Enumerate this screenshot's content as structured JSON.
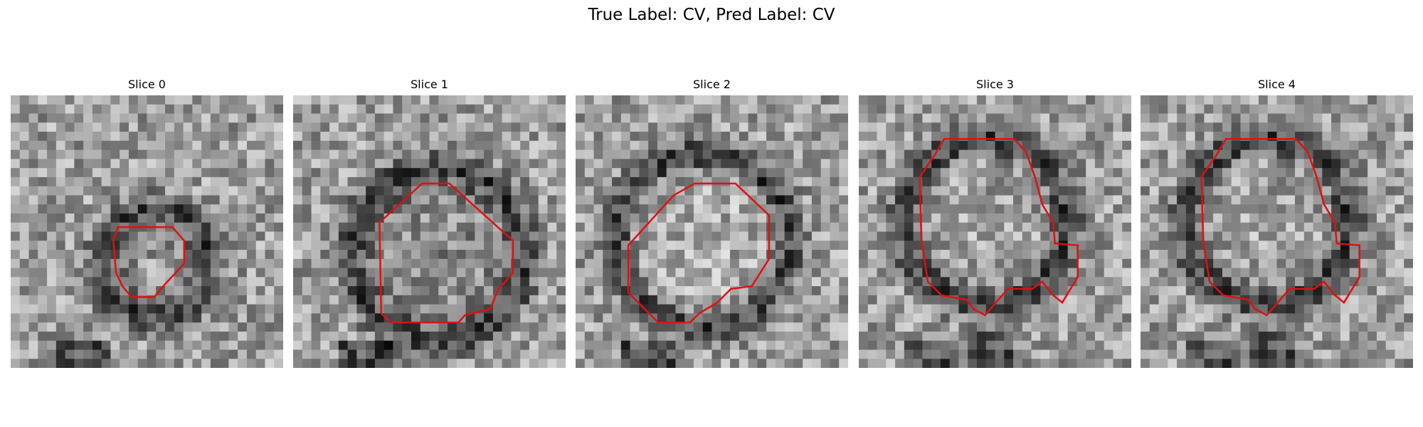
{
  "title": "True Label: CV, Pred Label: CV",
  "panels": [
    {
      "title": "Slice 0"
    },
    {
      "title": "Slice 1"
    },
    {
      "title": "Slice 2"
    },
    {
      "title": "Slice 3"
    },
    {
      "title": "Slice 4"
    }
  ]
}
